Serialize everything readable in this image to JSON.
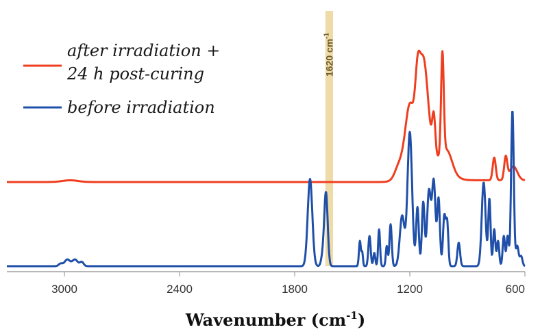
{
  "chart_data": {
    "type": "line",
    "title": "",
    "xlabel": "Wavenumber (cm",
    "xlabel_sup": "-1",
    "xlabel_end": ")",
    "ylabel": "",
    "xlim": [
      3300,
      600
    ],
    "x_reversed": true,
    "x_ticks": [
      {
        "value": 3000,
        "label": "3000"
      },
      {
        "value": 2400,
        "label": "2400"
      },
      {
        "value": 1800,
        "label": "1800"
      },
      {
        "value": 1200,
        "label": "1200"
      },
      {
        "value": 600,
        "label": "600"
      }
    ],
    "grid": false,
    "legend_position": "top-left",
    "annotation": {
      "label": "1620 cm",
      "label_sup": "-1",
      "x_center": 1620,
      "x_width": 40,
      "color": "#e8cf8a"
    },
    "series": [
      {
        "name": "after irradiation +",
        "name_line2": "24 h post-curing",
        "color": "#ef3e1f",
        "peaks": [
          {
            "x": 1200,
            "h": 0.31,
            "w": 22
          },
          {
            "x": 1130,
            "h": 0.58,
            "w": 25
          },
          {
            "x": 1160,
            "h": 0.25,
            "w": 12
          },
          {
            "x": 1075,
            "h": 0.22,
            "w": 8
          },
          {
            "x": 1030,
            "h": 0.58,
            "w": 7
          },
          {
            "x": 1005,
            "h": 0.08,
            "w": 25
          },
          {
            "x": 760,
            "h": 0.13,
            "w": 8
          },
          {
            "x": 700,
            "h": 0.13,
            "w": 8
          },
          {
            "x": 660,
            "h": 0.08,
            "w": 20
          },
          {
            "x": 2970,
            "h": 0.01,
            "w": 40
          }
        ],
        "steps": [
          {
            "x": 1275,
            "h": 0.13,
            "w": 12
          },
          {
            "x": 980,
            "h": -0.12,
            "w": 20
          }
        ]
      },
      {
        "name": "before irradiation",
        "color": "#1f4fa8",
        "peaks": [
          {
            "x": 2985,
            "h": 0.04,
            "w": 14
          },
          {
            "x": 2945,
            "h": 0.04,
            "w": 14
          },
          {
            "x": 2910,
            "h": 0.025,
            "w": 10
          },
          {
            "x": 3020,
            "h": 0.015,
            "w": 10
          },
          {
            "x": 1720,
            "h": 0.52,
            "w": 12
          },
          {
            "x": 1637,
            "h": 0.44,
            "w": 9
          },
          {
            "x": 1655,
            "h": 0.05,
            "w": 8
          },
          {
            "x": 1460,
            "h": 0.15,
            "w": 5
          },
          {
            "x": 1448,
            "h": 0.08,
            "w": 4
          },
          {
            "x": 1410,
            "h": 0.18,
            "w": 6
          },
          {
            "x": 1385,
            "h": 0.08,
            "w": 5
          },
          {
            "x": 1360,
            "h": 0.22,
            "w": 5
          },
          {
            "x": 1320,
            "h": 0.12,
            "w": 5
          },
          {
            "x": 1300,
            "h": 0.25,
            "w": 6
          },
          {
            "x": 1240,
            "h": 0.3,
            "w": 12
          },
          {
            "x": 1200,
            "h": 0.8,
            "w": 12
          },
          {
            "x": 1160,
            "h": 0.35,
            "w": 7
          },
          {
            "x": 1130,
            "h": 0.38,
            "w": 7
          },
          {
            "x": 1100,
            "h": 0.45,
            "w": 10
          },
          {
            "x": 1075,
            "h": 0.5,
            "w": 9
          },
          {
            "x": 1050,
            "h": 0.4,
            "w": 7
          },
          {
            "x": 1020,
            "h": 0.3,
            "w": 7
          },
          {
            "x": 1005,
            "h": 0.25,
            "w": 6
          },
          {
            "x": 945,
            "h": 0.14,
            "w": 7
          },
          {
            "x": 815,
            "h": 0.5,
            "w": 10
          },
          {
            "x": 785,
            "h": 0.4,
            "w": 6
          },
          {
            "x": 760,
            "h": 0.22,
            "w": 6
          },
          {
            "x": 740,
            "h": 0.15,
            "w": 6
          },
          {
            "x": 710,
            "h": 0.18,
            "w": 6
          },
          {
            "x": 690,
            "h": 0.18,
            "w": 6
          },
          {
            "x": 665,
            "h": 0.93,
            "w": 7
          },
          {
            "x": 640,
            "h": 0.12,
            "w": 7
          },
          {
            "x": 620,
            "h": 0.06,
            "w": 7
          }
        ]
      }
    ]
  }
}
